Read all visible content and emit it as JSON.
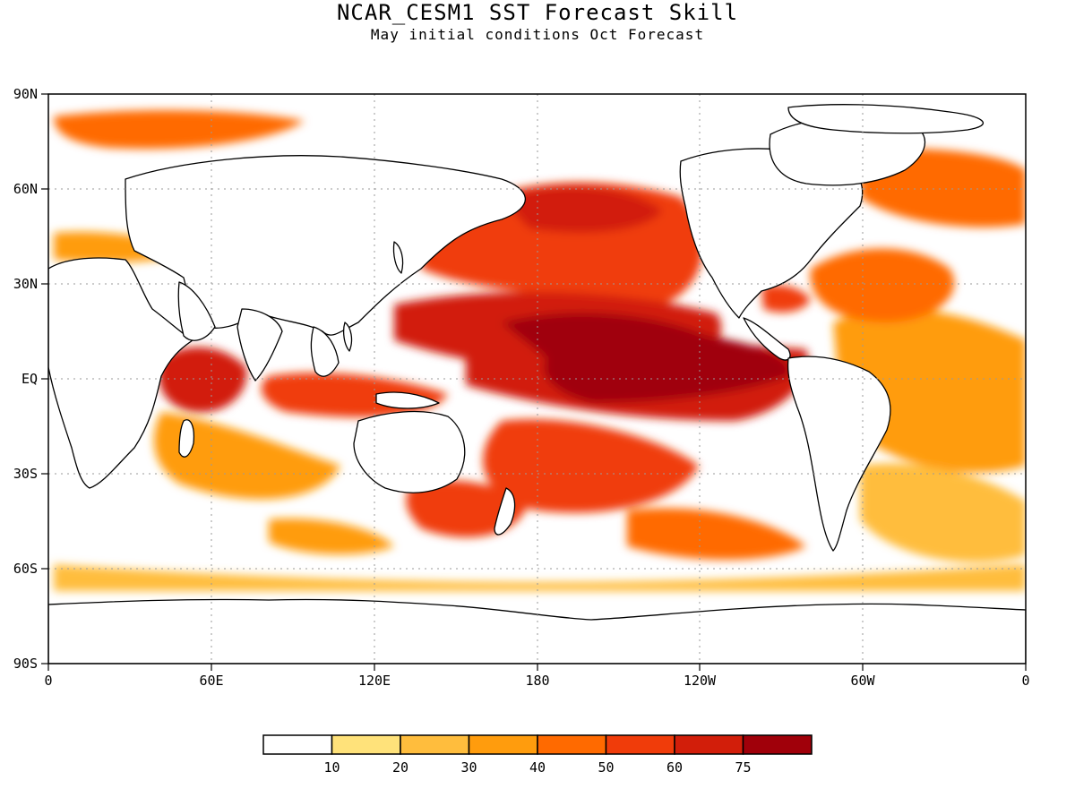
{
  "title": "NCAR_CESM1 SST Forecast Skill",
  "subtitle": "May initial conditions  Oct Forecast",
  "map": {
    "projection": "cylindrical-equidistant",
    "lon_range": [
      0,
      360
    ],
    "lat_range": [
      -90,
      90
    ],
    "grid": "dotted",
    "land_color": "#ffffff",
    "coastline_color": "#000000",
    "lat_labels": [
      "90N",
      "60N",
      "30N",
      "EQ",
      "30S",
      "60S",
      "90S"
    ],
    "lon_labels": [
      "0",
      "60E",
      "120E",
      "180",
      "120W",
      "60W",
      "0"
    ]
  },
  "colorbar": {
    "labels": [
      "10",
      "20",
      "30",
      "40",
      "50",
      "60",
      "75"
    ],
    "colors": [
      "#ffffff",
      "#ffe27a",
      "#ffbd3d",
      "#ff9c0d",
      "#ff6a00",
      "#f03c0a",
      "#d21e0a",
      "#a0000a"
    ]
  },
  "regions": [
    {
      "name": "equatorial-central-pacific",
      "level": 7
    },
    {
      "name": "north-pacific",
      "level": 6
    },
    {
      "name": "tropical-north-pacific",
      "level": 6
    },
    {
      "name": "western-indian-ocean",
      "level": 6
    },
    {
      "name": "maritime-continent",
      "level": 5
    },
    {
      "name": "south-pacific",
      "level": 5
    },
    {
      "name": "north-atlantic",
      "level": 4
    },
    {
      "name": "tasman-sea",
      "level": 5
    },
    {
      "name": "southern-indian-ocean",
      "level": 3
    },
    {
      "name": "tropical-atlantic",
      "level": 3
    }
  ]
}
